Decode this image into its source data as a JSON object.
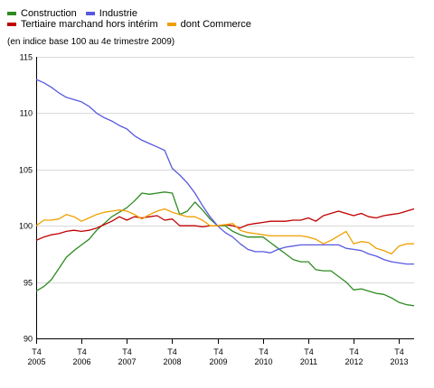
{
  "legend": {
    "construction": "Construction",
    "industrie": "Industrie",
    "tertiaire": "Tertiaire marchand hors intérim",
    "commerce": "dont Commerce"
  },
  "subtitle": "(en indice base 100 au 4e trimestre 2009)",
  "chart_data": {
    "type": "line",
    "title": "",
    "xlabel": "",
    "ylabel": "",
    "ylim": [
      90,
      115
    ],
    "yticks": [
      90,
      95,
      100,
      105,
      110,
      115
    ],
    "grid": "horizontal",
    "legend_position": "top-left",
    "x_tick_labels": [
      {
        "index": 0,
        "line1": "T4",
        "line2": "2005"
      },
      {
        "index": 12,
        "line1": "T4",
        "line2": "2006"
      },
      {
        "index": 24,
        "line1": "T4",
        "line2": "2007"
      },
      {
        "index": 36,
        "line1": "T4",
        "line2": "2008"
      },
      {
        "index": 48,
        "line1": "T4",
        "line2": "2009"
      },
      {
        "index": 60,
        "line1": "T4",
        "line2": "2010"
      },
      {
        "index": 72,
        "line1": "T4",
        "line2": "2011"
      },
      {
        "index": 84,
        "line1": "T4",
        "line2": "2012"
      },
      {
        "index": 96,
        "line1": "T4",
        "line2": "2013"
      }
    ],
    "series": [
      {
        "name": "Construction",
        "color": "#2e8b22",
        "x": [
          0,
          2,
          4,
          6,
          8,
          10,
          12,
          14,
          16,
          18,
          20,
          22,
          24,
          26,
          28,
          30,
          32,
          34,
          36,
          38,
          40,
          42,
          44,
          46,
          48,
          50,
          52,
          54,
          56,
          58,
          60,
          62,
          64,
          66,
          68,
          70,
          72,
          74,
          76,
          78,
          80,
          82,
          84,
          86,
          88,
          90,
          92,
          94,
          96,
          98,
          100
        ],
        "values": [
          94.2,
          94.6,
          95.2,
          96.2,
          97.2,
          97.8,
          98.3,
          98.8,
          99.6,
          100.2,
          100.8,
          101.2,
          101.6,
          102.2,
          102.9,
          102.8,
          102.9,
          103.0,
          102.9,
          101.0,
          101.3,
          102.1,
          101.4,
          100.6,
          100.0,
          100.0,
          99.5,
          99.2,
          99.0,
          99.0,
          99.0,
          98.5,
          98.0,
          97.5,
          97.0,
          96.8,
          96.8,
          96.1,
          96.0,
          96.0,
          95.5,
          95.0,
          94.3,
          94.4,
          94.2,
          94.0,
          93.9,
          93.6,
          93.2,
          93.0,
          92.9
        ]
      },
      {
        "name": "Industrie",
        "color": "#5959e0",
        "x": [
          0,
          2,
          4,
          6,
          8,
          10,
          12,
          14,
          16,
          18,
          20,
          22,
          24,
          26,
          28,
          30,
          32,
          34,
          36,
          38,
          40,
          42,
          44,
          46,
          48,
          50,
          52,
          54,
          56,
          58,
          60,
          62,
          64,
          66,
          68,
          70,
          72,
          74,
          76,
          78,
          80,
          82,
          84,
          86,
          88,
          90,
          92,
          94,
          96,
          98,
          100
        ],
        "values": [
          113.0,
          112.7,
          112.3,
          111.8,
          111.4,
          111.2,
          111.0,
          110.6,
          110.0,
          109.6,
          109.3,
          108.9,
          108.6,
          108.0,
          107.6,
          107.3,
          107.0,
          106.7,
          105.1,
          104.5,
          103.8,
          102.9,
          101.8,
          100.8,
          100.0,
          99.4,
          99.0,
          98.4,
          97.9,
          97.7,
          97.7,
          97.6,
          97.9,
          98.1,
          98.2,
          98.3,
          98.3,
          98.3,
          98.3,
          98.3,
          98.3,
          98.0,
          97.9,
          97.8,
          97.5,
          97.3,
          97.0,
          96.8,
          96.7,
          96.6,
          96.6
        ]
      },
      {
        "name": "Tertiaire marchand hors intérim",
        "color": "#c00000",
        "x": [
          0,
          2,
          4,
          6,
          8,
          10,
          12,
          14,
          16,
          18,
          20,
          22,
          24,
          26,
          28,
          30,
          32,
          34,
          36,
          38,
          40,
          42,
          44,
          46,
          48,
          50,
          52,
          54,
          56,
          58,
          60,
          62,
          64,
          66,
          68,
          70,
          72,
          74,
          76,
          78,
          80,
          82,
          84,
          86,
          88,
          90,
          92,
          94,
          96,
          98,
          100
        ],
        "values": [
          98.7,
          99.0,
          99.2,
          99.3,
          99.5,
          99.6,
          99.5,
          99.6,
          99.8,
          100.1,
          100.4,
          100.8,
          100.5,
          100.8,
          100.7,
          100.8,
          100.9,
          100.5,
          100.6,
          100.0,
          100.0,
          100.0,
          99.9,
          100.0,
          100.0,
          100.1,
          100.0,
          99.8,
          100.1,
          100.2,
          100.3,
          100.4,
          100.4,
          100.4,
          100.5,
          100.5,
          100.7,
          100.4,
          100.9,
          101.1,
          101.3,
          101.1,
          100.9,
          101.1,
          100.8,
          100.7,
          100.9,
          101.0,
          101.1,
          101.3,
          101.5
        ]
      },
      {
        "name": "dont Commerce",
        "color": "#f0a000",
        "x": [
          0,
          2,
          4,
          6,
          8,
          10,
          12,
          14,
          16,
          18,
          20,
          22,
          24,
          26,
          28,
          30,
          32,
          34,
          36,
          38,
          40,
          42,
          44,
          46,
          48,
          50,
          52,
          54,
          56,
          58,
          60,
          62,
          64,
          66,
          68,
          70,
          72,
          74,
          76,
          78,
          80,
          82,
          84,
          86,
          88,
          90,
          92,
          94,
          96,
          98,
          100
        ],
        "values": [
          100.0,
          100.5,
          100.5,
          100.6,
          101.0,
          100.8,
          100.4,
          100.7,
          101.0,
          101.2,
          101.3,
          101.4,
          101.3,
          101.0,
          100.6,
          101.0,
          101.3,
          101.5,
          101.2,
          101.0,
          100.8,
          100.8,
          100.5,
          100.0,
          100.0,
          100.1,
          100.2,
          99.6,
          99.4,
          99.3,
          99.2,
          99.1,
          99.1,
          99.1,
          99.1,
          99.1,
          99.0,
          98.8,
          98.4,
          98.7,
          99.1,
          99.5,
          98.4,
          98.6,
          98.5,
          98.0,
          97.8,
          97.5,
          98.2,
          98.4,
          98.4
        ]
      }
    ]
  }
}
